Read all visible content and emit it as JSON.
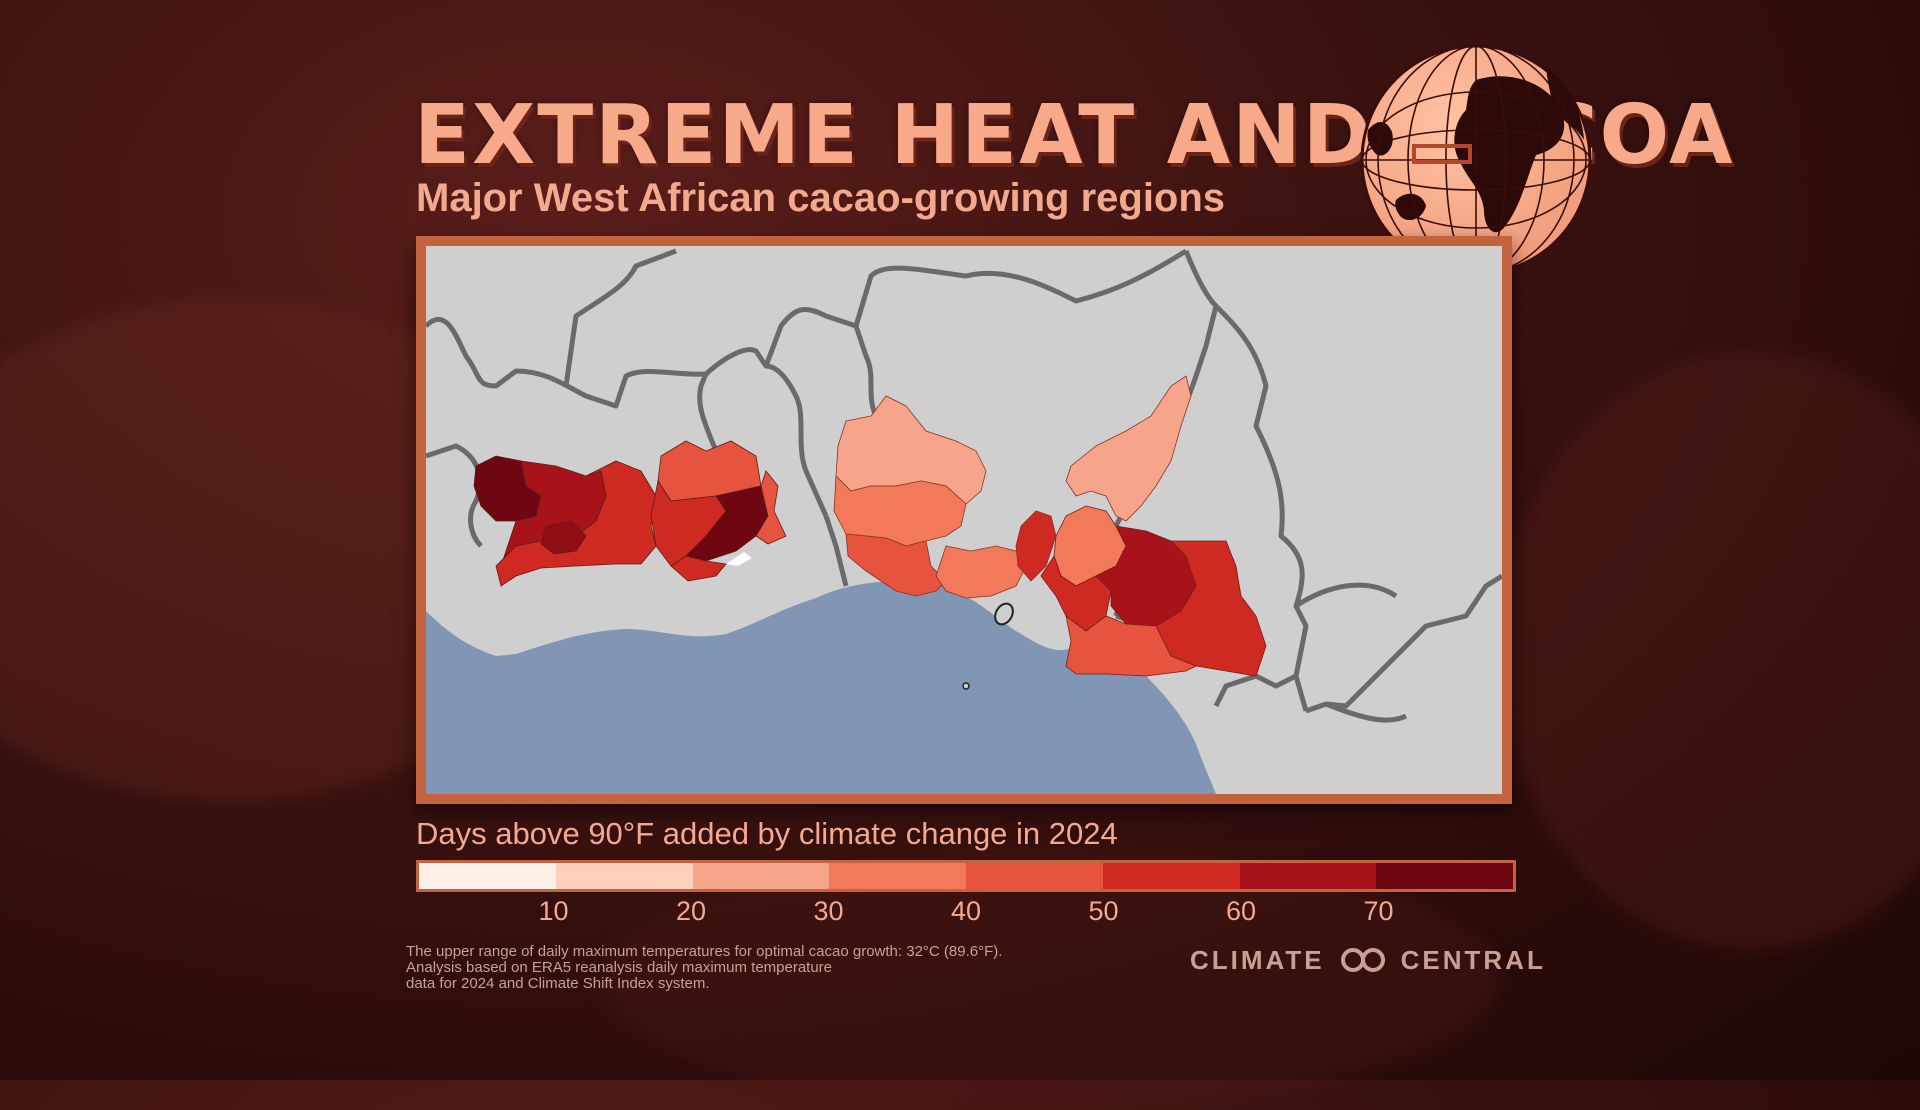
{
  "title": "EXTREME HEAT AND COCOA",
  "subtitle": "Major West African cacao-growing regions",
  "legend": {
    "title": "Days above 90°F added by climate change in 2024",
    "bins": [
      "#fdf0e8",
      "#fbd0bd",
      "#f6a58a",
      "#f27a5b",
      "#e65440",
      "#cf2a22",
      "#a71319",
      "#6e0712"
    ],
    "ticks": [
      "10",
      "20",
      "30",
      "40",
      "50",
      "60",
      "70"
    ]
  },
  "footnote": {
    "line1": "The upper range of daily maximum temperatures for optimal cacao growth: 32°C (89.6°F).",
    "line2": "Analysis based on ERA5 reanalysis daily maximum temperature",
    "line3": "data for 2024 and Climate Shift Index system."
  },
  "brand": {
    "left": "CLIMATE",
    "right": "CENTRAL",
    "logo_icon": "climate-central-logo-icon"
  },
  "colors": {
    "land": "#cfcfcf",
    "ocean": "#8096b4",
    "border": "#6a6a6a",
    "frame": "#c4643f",
    "accent_text": "#f3a98d"
  },
  "map": {
    "regions": [
      {
        "name": "cote-divoire-west-region",
        "days": 72
      },
      {
        "name": "cote-divoire-central-region",
        "days": 62
      },
      {
        "name": "cote-divoire-east-region",
        "days": 58
      },
      {
        "name": "ghana-north-region",
        "days": 45
      },
      {
        "name": "ghana-central-region",
        "days": 62
      },
      {
        "name": "ghana-ashanti-region",
        "days": 75
      },
      {
        "name": "ghana-coast-region",
        "days": 52
      },
      {
        "name": "nigeria-west-region",
        "days": 22
      },
      {
        "name": "nigeria-southwest-region",
        "days": 38
      },
      {
        "name": "nigeria-lagos-region",
        "days": 48
      },
      {
        "name": "nigeria-delta-region",
        "days": 40
      },
      {
        "name": "nigeria-cross-river-region",
        "days": 60
      },
      {
        "name": "nigeria-east-region",
        "days": 22
      },
      {
        "name": "cameroon-west-region",
        "days": 42
      },
      {
        "name": "cameroon-central-region",
        "days": 65
      },
      {
        "name": "cameroon-south-region",
        "days": 58
      },
      {
        "name": "cameroon-southwest-region",
        "days": 46
      }
    ]
  }
}
